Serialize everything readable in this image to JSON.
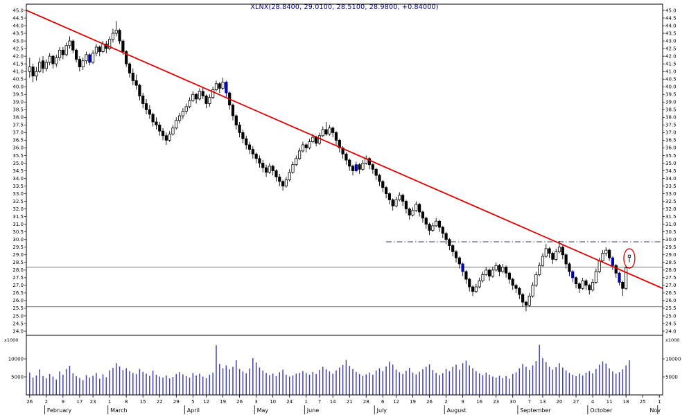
{
  "title": "XLNX(28.8400, 29.0100, 28.5100, 28.9800, +0.84000)",
  "chart_data": {
    "type": "candlestick",
    "symbol": "XLNX",
    "last_quote": {
      "open": 28.84,
      "high": 29.01,
      "low": 28.51,
      "close": 28.98,
      "change": "+0.84000"
    },
    "price_axis": {
      "min": 24.0,
      "max": 45.0,
      "step": 0.5,
      "sides": "both"
    },
    "volume_axis": {
      "unit_label": "x1000",
      "ticks": [
        5000,
        10000
      ]
    },
    "axis_total_days": 190,
    "x_ticks": [
      [
        0,
        "26"
      ],
      [
        5,
        "2"
      ],
      [
        10,
        "9"
      ],
      [
        15,
        "17"
      ],
      [
        19,
        "23"
      ],
      [
        24,
        "1"
      ],
      [
        29,
        "8"
      ],
      [
        34,
        "15"
      ],
      [
        39,
        "22"
      ],
      [
        44,
        "29"
      ],
      [
        49,
        "5"
      ],
      [
        53,
        "12"
      ],
      [
        58,
        "19"
      ],
      [
        63,
        "26"
      ],
      [
        68,
        "3"
      ],
      [
        73,
        "10"
      ],
      [
        78,
        "24"
      ],
      [
        83,
        "1"
      ],
      [
        87,
        "7"
      ],
      [
        91,
        "14"
      ],
      [
        96,
        "21"
      ],
      [
        101,
        "28"
      ],
      [
        106,
        "6"
      ],
      [
        110,
        "12"
      ],
      [
        115,
        "19"
      ],
      [
        120,
        "26"
      ],
      [
        125,
        "2"
      ],
      [
        130,
        "9"
      ],
      [
        135,
        "16"
      ],
      [
        140,
        "23"
      ],
      [
        145,
        "30"
      ],
      [
        150,
        "7"
      ],
      [
        154,
        "13"
      ],
      [
        159,
        "20"
      ],
      [
        164,
        "27"
      ],
      [
        169,
        "4"
      ],
      [
        174,
        "11"
      ],
      [
        179,
        "18"
      ],
      [
        184,
        "25"
      ],
      [
        189,
        "1"
      ]
    ],
    "months": [
      {
        "label": "February",
        "start_day": 5
      },
      {
        "label": "March",
        "start_day": 24
      },
      {
        "label": "April",
        "start_day": 47
      },
      {
        "label": "May",
        "start_day": 68
      },
      {
        "label": "June",
        "start_day": 83
      },
      {
        "label": "July",
        "start_day": 104
      },
      {
        "label": "August",
        "start_day": 125
      },
      {
        "label": "September",
        "start_day": 147
      },
      {
        "label": "October",
        "start_day": 168
      },
      {
        "label": "Nov",
        "start_day": 189
      }
    ],
    "ohlc": [
      [
        41.0,
        41.9,
        40.6,
        41.3
      ],
      [
        41.3,
        41.5,
        40.3,
        40.7
      ],
      [
        40.7,
        41.3,
        40.4,
        41.0
      ],
      [
        41.0,
        41.9,
        40.9,
        41.6
      ],
      [
        41.7,
        42.0,
        40.9,
        41.2
      ],
      [
        41.2,
        41.8,
        41.0,
        41.6
      ],
      [
        41.6,
        42.2,
        41.4,
        42.0
      ],
      [
        42.0,
        42.1,
        41.2,
        41.5
      ],
      [
        41.5,
        42.1,
        41.3,
        41.9
      ],
      [
        41.9,
        42.6,
        41.7,
        42.4
      ],
      [
        42.4,
        42.6,
        41.8,
        42.1
      ],
      [
        42.1,
        42.9,
        42.0,
        42.7
      ],
      [
        42.7,
        43.3,
        42.5,
        43.0
      ],
      [
        43.0,
        43.1,
        42.2,
        42.4
      ],
      [
        42.4,
        42.5,
        41.6,
        41.8
      ],
      [
        41.8,
        42.0,
        41.0,
        41.3
      ],
      [
        41.3,
        41.9,
        41.1,
        41.7
      ],
      [
        41.7,
        42.3,
        41.5,
        42.1
      ],
      [
        42.1,
        42.2,
        41.4,
        41.6
      ],
      [
        41.6,
        42.4,
        41.5,
        42.2
      ],
      [
        42.2,
        42.8,
        42.0,
        42.6
      ],
      [
        42.6,
        42.7,
        42.0,
        42.3
      ],
      [
        42.3,
        43.0,
        42.2,
        42.8
      ],
      [
        42.8,
        43.0,
        42.2,
        42.5
      ],
      [
        42.5,
        43.3,
        42.4,
        43.1
      ],
      [
        43.1,
        43.8,
        42.9,
        43.5
      ],
      [
        43.5,
        44.3,
        43.3,
        43.7
      ],
      [
        43.7,
        43.8,
        42.8,
        43.0
      ],
      [
        43.0,
        43.1,
        42.1,
        42.3
      ],
      [
        42.3,
        42.4,
        41.3,
        41.5
      ],
      [
        41.5,
        41.6,
        40.6,
        40.9
      ],
      [
        40.9,
        41.2,
        40.1,
        40.4
      ],
      [
        40.4,
        40.8,
        39.8,
        40.1
      ],
      [
        40.1,
        40.2,
        39.1,
        39.4
      ],
      [
        39.4,
        39.6,
        38.6,
        38.9
      ],
      [
        38.9,
        39.2,
        38.2,
        38.5
      ],
      [
        38.5,
        38.8,
        37.9,
        38.2
      ],
      [
        38.2,
        38.3,
        37.4,
        37.7
      ],
      [
        37.7,
        38.0,
        37.2,
        37.5
      ],
      [
        37.5,
        37.7,
        36.8,
        37.1
      ],
      [
        37.1,
        37.3,
        36.5,
        36.8
      ],
      [
        36.8,
        37.0,
        36.2,
        36.5
      ],
      [
        36.5,
        37.1,
        36.4,
        36.9
      ],
      [
        36.9,
        37.5,
        36.8,
        37.3
      ],
      [
        37.3,
        38.0,
        37.2,
        37.8
      ],
      [
        37.8,
        38.3,
        37.6,
        38.1
      ],
      [
        38.1,
        38.6,
        37.9,
        38.4
      ],
      [
        38.4,
        38.9,
        38.2,
        38.7
      ],
      [
        38.7,
        39.3,
        38.6,
        39.1
      ],
      [
        39.1,
        39.7,
        39.0,
        39.5
      ],
      [
        39.5,
        39.6,
        38.9,
        39.2
      ],
      [
        39.2,
        39.9,
        39.1,
        39.7
      ],
      [
        39.7,
        40.0,
        39.2,
        39.4
      ],
      [
        39.4,
        39.5,
        38.6,
        38.9
      ],
      [
        38.9,
        39.5,
        38.7,
        39.3
      ],
      [
        39.3,
        40.0,
        39.2,
        39.8
      ],
      [
        39.8,
        40.4,
        39.7,
        40.2
      ],
      [
        40.2,
        40.3,
        39.6,
        39.9
      ],
      [
        39.9,
        40.6,
        39.8,
        40.3
      ],
      [
        40.3,
        40.4,
        39.3,
        39.6
      ],
      [
        39.6,
        39.7,
        38.5,
        38.8
      ],
      [
        38.8,
        38.9,
        37.8,
        38.1
      ],
      [
        38.1,
        38.2,
        37.2,
        37.5
      ],
      [
        37.5,
        37.7,
        36.7,
        37.0
      ],
      [
        37.0,
        37.2,
        36.3,
        36.6
      ],
      [
        36.6,
        36.8,
        35.9,
        36.2
      ],
      [
        36.2,
        36.4,
        35.6,
        35.9
      ],
      [
        35.9,
        36.1,
        35.3,
        35.6
      ],
      [
        35.6,
        35.7,
        35.0,
        35.3
      ],
      [
        35.3,
        35.5,
        34.7,
        35.0
      ],
      [
        35.0,
        35.2,
        34.4,
        34.7
      ],
      [
        34.7,
        34.9,
        34.1,
        34.4
      ],
      [
        34.4,
        35.0,
        34.3,
        34.8
      ],
      [
        34.8,
        34.9,
        34.2,
        34.5
      ],
      [
        34.5,
        34.6,
        33.8,
        34.1
      ],
      [
        34.1,
        34.3,
        33.5,
        33.8
      ],
      [
        33.8,
        33.9,
        33.2,
        33.5
      ],
      [
        33.5,
        34.1,
        33.4,
        33.9
      ],
      [
        33.9,
        34.6,
        33.8,
        34.4
      ],
      [
        34.4,
        35.1,
        34.3,
        34.9
      ],
      [
        34.9,
        35.5,
        34.8,
        35.3
      ],
      [
        35.3,
        36.0,
        35.2,
        35.8
      ],
      [
        35.8,
        36.4,
        35.7,
        36.2
      ],
      [
        36.2,
        36.3,
        35.7,
        36.0
      ],
      [
        36.0,
        36.6,
        35.9,
        36.4
      ],
      [
        36.4,
        36.9,
        36.3,
        36.7
      ],
      [
        36.7,
        36.8,
        36.1,
        36.3
      ],
      [
        36.3,
        37.0,
        36.2,
        36.8
      ],
      [
        36.8,
        37.4,
        36.7,
        37.2
      ],
      [
        37.2,
        37.7,
        36.8,
        36.9
      ],
      [
        36.9,
        37.5,
        36.8,
        37.3
      ],
      [
        37.3,
        37.4,
        36.7,
        37.0
      ],
      [
        37.0,
        37.1,
        36.2,
        36.5
      ],
      [
        36.5,
        36.6,
        35.7,
        36.0
      ],
      [
        36.0,
        36.1,
        35.3,
        35.6
      ],
      [
        35.6,
        35.7,
        34.9,
        35.2
      ],
      [
        35.2,
        35.3,
        34.5,
        34.8
      ],
      [
        34.8,
        34.9,
        34.2,
        34.5
      ],
      [
        34.5,
        35.1,
        34.4,
        34.9
      ],
      [
        34.9,
        35.0,
        34.3,
        34.6
      ],
      [
        34.6,
        35.2,
        34.5,
        35.0
      ],
      [
        35.0,
        35.5,
        34.9,
        35.3
      ],
      [
        35.3,
        35.4,
        34.6,
        34.9
      ],
      [
        34.9,
        35.0,
        34.3,
        34.6
      ],
      [
        34.6,
        34.7,
        33.9,
        34.2
      ],
      [
        34.2,
        34.3,
        33.5,
        33.8
      ],
      [
        33.8,
        33.9,
        33.1,
        33.4
      ],
      [
        33.4,
        33.5,
        32.7,
        33.0
      ],
      [
        33.0,
        33.1,
        32.3,
        32.6
      ],
      [
        32.6,
        32.7,
        31.9,
        32.2
      ],
      [
        32.2,
        32.8,
        32.1,
        32.6
      ],
      [
        32.6,
        33.1,
        32.5,
        32.9
      ],
      [
        32.9,
        33.0,
        32.2,
        32.5
      ],
      [
        32.5,
        32.6,
        31.7,
        32.0
      ],
      [
        32.0,
        32.1,
        31.3,
        31.6
      ],
      [
        31.6,
        32.1,
        31.5,
        31.9
      ],
      [
        31.9,
        32.5,
        31.8,
        32.3
      ],
      [
        32.3,
        32.4,
        31.5,
        31.8
      ],
      [
        31.8,
        31.9,
        31.1,
        31.4
      ],
      [
        31.4,
        31.5,
        30.7,
        31.0
      ],
      [
        31.0,
        31.1,
        30.3,
        30.6
      ],
      [
        30.6,
        31.1,
        30.5,
        30.9
      ],
      [
        30.9,
        31.4,
        30.8,
        31.2
      ],
      [
        31.2,
        31.3,
        30.5,
        30.8
      ],
      [
        30.8,
        30.9,
        30.1,
        30.4
      ],
      [
        30.4,
        30.5,
        29.7,
        30.0
      ],
      [
        30.0,
        30.1,
        29.3,
        29.6
      ],
      [
        29.6,
        29.7,
        28.9,
        29.2
      ],
      [
        29.2,
        29.3,
        28.5,
        28.8
      ],
      [
        28.8,
        28.9,
        28.1,
        28.4
      ],
      [
        28.4,
        28.5,
        27.6,
        27.9
      ],
      [
        27.9,
        28.0,
        27.1,
        27.4
      ],
      [
        27.4,
        27.5,
        26.6,
        26.9
      ],
      [
        26.9,
        27.0,
        26.3,
        26.6
      ],
      [
        26.6,
        27.1,
        26.5,
        26.9
      ],
      [
        26.9,
        27.5,
        26.8,
        27.3
      ],
      [
        27.3,
        27.9,
        27.2,
        27.7
      ],
      [
        27.7,
        28.2,
        27.6,
        28.0
      ],
      [
        28.0,
        28.1,
        27.3,
        27.6
      ],
      [
        27.6,
        28.2,
        27.5,
        28.0
      ],
      [
        28.0,
        28.5,
        27.9,
        28.3
      ],
      [
        28.3,
        28.4,
        27.6,
        27.9
      ],
      [
        27.9,
        28.4,
        27.8,
        28.2
      ],
      [
        28.2,
        28.3,
        27.5,
        27.8
      ],
      [
        27.8,
        27.9,
        27.1,
        27.4
      ],
      [
        27.4,
        27.5,
        26.7,
        27.0
      ],
      [
        27.0,
        27.1,
        26.5,
        26.8
      ],
      [
        26.8,
        26.9,
        26.1,
        26.4
      ],
      [
        26.4,
        26.5,
        25.6,
        25.9
      ],
      [
        25.9,
        26.0,
        25.3,
        25.7
      ],
      [
        25.7,
        26.5,
        25.6,
        26.3
      ],
      [
        26.3,
        27.2,
        26.2,
        27.0
      ],
      [
        27.0,
        27.9,
        26.9,
        27.7
      ],
      [
        27.7,
        28.5,
        27.6,
        28.3
      ],
      [
        28.3,
        29.1,
        28.2,
        28.9
      ],
      [
        28.9,
        29.7,
        28.8,
        29.4
      ],
      [
        29.4,
        29.5,
        28.8,
        29.1
      ],
      [
        29.1,
        29.2,
        28.4,
        28.7
      ],
      [
        28.7,
        29.4,
        28.6,
        29.2
      ],
      [
        29.2,
        29.9,
        29.1,
        29.5
      ],
      [
        29.5,
        29.6,
        28.7,
        29.0
      ],
      [
        29.0,
        29.1,
        28.1,
        28.4
      ],
      [
        28.4,
        28.5,
        27.6,
        27.9
      ],
      [
        27.9,
        28.0,
        27.2,
        27.5
      ],
      [
        27.5,
        27.6,
        26.8,
        27.1
      ],
      [
        27.1,
        27.2,
        26.5,
        26.8
      ],
      [
        26.8,
        27.5,
        26.7,
        27.3
      ],
      [
        27.3,
        27.4,
        26.7,
        27.0
      ],
      [
        27.0,
        27.1,
        26.4,
        26.7
      ],
      [
        26.7,
        27.4,
        26.6,
        27.2
      ],
      [
        27.2,
        28.1,
        27.1,
        27.9
      ],
      [
        27.9,
        28.8,
        27.8,
        28.6
      ],
      [
        28.6,
        29.3,
        28.5,
        29.1
      ],
      [
        29.1,
        29.5,
        28.9,
        29.3
      ],
      [
        29.3,
        29.4,
        28.6,
        28.8
      ],
      [
        28.8,
        28.9,
        28.0,
        28.3
      ],
      [
        28.3,
        28.4,
        27.5,
        27.8
      ],
      [
        27.8,
        27.9,
        27.0,
        27.2
      ],
      [
        27.2,
        27.3,
        26.3,
        26.8
      ],
      [
        26.8,
        28.3,
        26.7,
        28.14
      ],
      [
        28.84,
        29.01,
        28.51,
        28.98
      ]
    ],
    "volumes": [
      6200,
      4800,
      5400,
      7100,
      5200,
      4600,
      5800,
      5100,
      4300,
      6500,
      5600,
      7200,
      8100,
      6000,
      5200,
      4700,
      4100,
      5500,
      4800,
      5300,
      6100,
      4500,
      5700,
      4900,
      6800,
      7500,
      8800,
      7900,
      6900,
      7400,
      6600,
      6100,
      5800,
      7200,
      6400,
      5900,
      5300,
      6700,
      5600,
      5100,
      4800,
      5400,
      4600,
      5000,
      5800,
      6300,
      5700,
      5200,
      4800,
      6100,
      5400,
      5900,
      5100,
      4700,
      5600,
      6200,
      13800,
      8600,
      7400,
      8200,
      7100,
      7800,
      9600,
      7200,
      6500,
      6000,
      7300,
      10200,
      9000,
      7600,
      6800,
      6100,
      5500,
      5900,
      5200,
      6300,
      7000,
      5600,
      5100,
      5400,
      5900,
      6100,
      6600,
      6100,
      5600,
      6400,
      5800,
      6900,
      7800,
      7100,
      6500,
      5900,
      6800,
      7600,
      8300,
      9700,
      8100,
      7200,
      6400,
      5800,
      5300,
      5700,
      6200,
      5600,
      6800,
      7400,
      6600,
      7900,
      9200,
      8400,
      7000,
      6300,
      5800,
      6700,
      7500,
      6200,
      5700,
      6400,
      7100,
      7800,
      8500,
      6900,
      6100,
      5500,
      6000,
      7200,
      6600,
      7800,
      8400,
      7000,
      8800,
      9500,
      8200,
      7400,
      6600,
      6000,
      5500,
      6200,
      5600,
      5100,
      4800,
      5300,
      4700,
      5200,
      4500,
      5800,
      6300,
      7400,
      8600,
      7800,
      6900,
      8200,
      9400,
      13900,
      10200,
      9100,
      7800,
      7000,
      7700,
      8800,
      7600,
      6800,
      6100,
      5600,
      5200,
      5900,
      5400,
      6200,
      6600,
      6000,
      7200,
      8400,
      9300,
      8700,
      7400,
      6500,
      5900,
      6300,
      7100,
      8200,
      9600
    ],
    "blue_days": [
      18,
      59,
      98,
      130,
      163,
      175,
      177
    ],
    "hlines": [
      28.2,
      25.6
    ],
    "dashdot_line": {
      "price": 29.85,
      "start_day": 107
    },
    "trendline": {
      "day_start": -2,
      "price_start": 45.1,
      "day_end": 190,
      "price_end": 26.8
    },
    "annotation_ellipse": {
      "day": 180,
      "price": 28.76
    },
    "colors": {
      "trendline": "#dd0000",
      "annotation": "#dd0000",
      "volume": "#4141a5",
      "blue_candle": "#0000a8",
      "candle_up_fill": "#ffffff",
      "candle_down_fill": "#000000",
      "title_text": "#000080"
    }
  }
}
